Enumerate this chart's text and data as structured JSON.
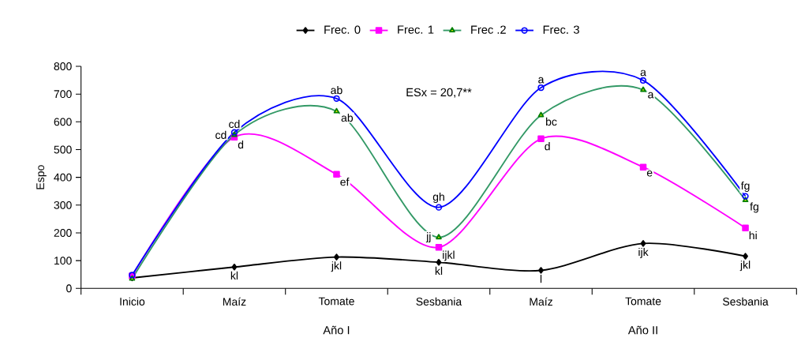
{
  "chart_data": {
    "type": "line",
    "ylabel": "Espo",
    "categories": [
      "Inicio",
      "Maíz",
      "Tomate",
      "Sesbania",
      "Maíz",
      "Tomate",
      "Sesbania"
    ],
    "series": [
      {
        "name": "Frec. 0",
        "color": "#000000",
        "marker": "diamond",
        "values": [
          38,
          77,
          113,
          94,
          65,
          162,
          116
        ],
        "value_labels": [
          null,
          "kl",
          "jkl",
          "kl",
          "l",
          "ijk",
          "jkl"
        ]
      },
      {
        "name": "Frec. 1",
        "color": "#ff00ff",
        "marker": "square",
        "values": [
          45,
          545,
          411,
          148,
          539,
          437,
          218
        ],
        "value_labels": [
          null,
          "d",
          "ef",
          "ijkl",
          "d",
          "e",
          "hi"
        ]
      },
      {
        "name": "Frec .2",
        "color": "#339966",
        "marker": "triangle",
        "values": [
          35,
          553,
          638,
          184,
          624,
          715,
          318
        ],
        "value_labels": [
          null,
          "cd",
          "ab",
          "jj",
          "bc",
          "a",
          "fg"
        ]
      },
      {
        "name": "Frec. 3",
        "color": "#0000ff",
        "marker": "circle",
        "values": [
          48,
          562,
          684,
          292,
          723,
          749,
          332
        ],
        "value_labels": [
          null,
          "cd",
          "ab",
          "gh",
          "a",
          "a",
          "fg"
        ]
      }
    ],
    "ylim": [
      0,
      800
    ],
    "yticks": [
      0,
      100,
      200,
      300,
      400,
      500,
      600,
      700,
      800
    ],
    "grid": false,
    "legend": "top",
    "annotations": [
      "ESx = 20,7**",
      "Año I",
      "Año II"
    ]
  }
}
